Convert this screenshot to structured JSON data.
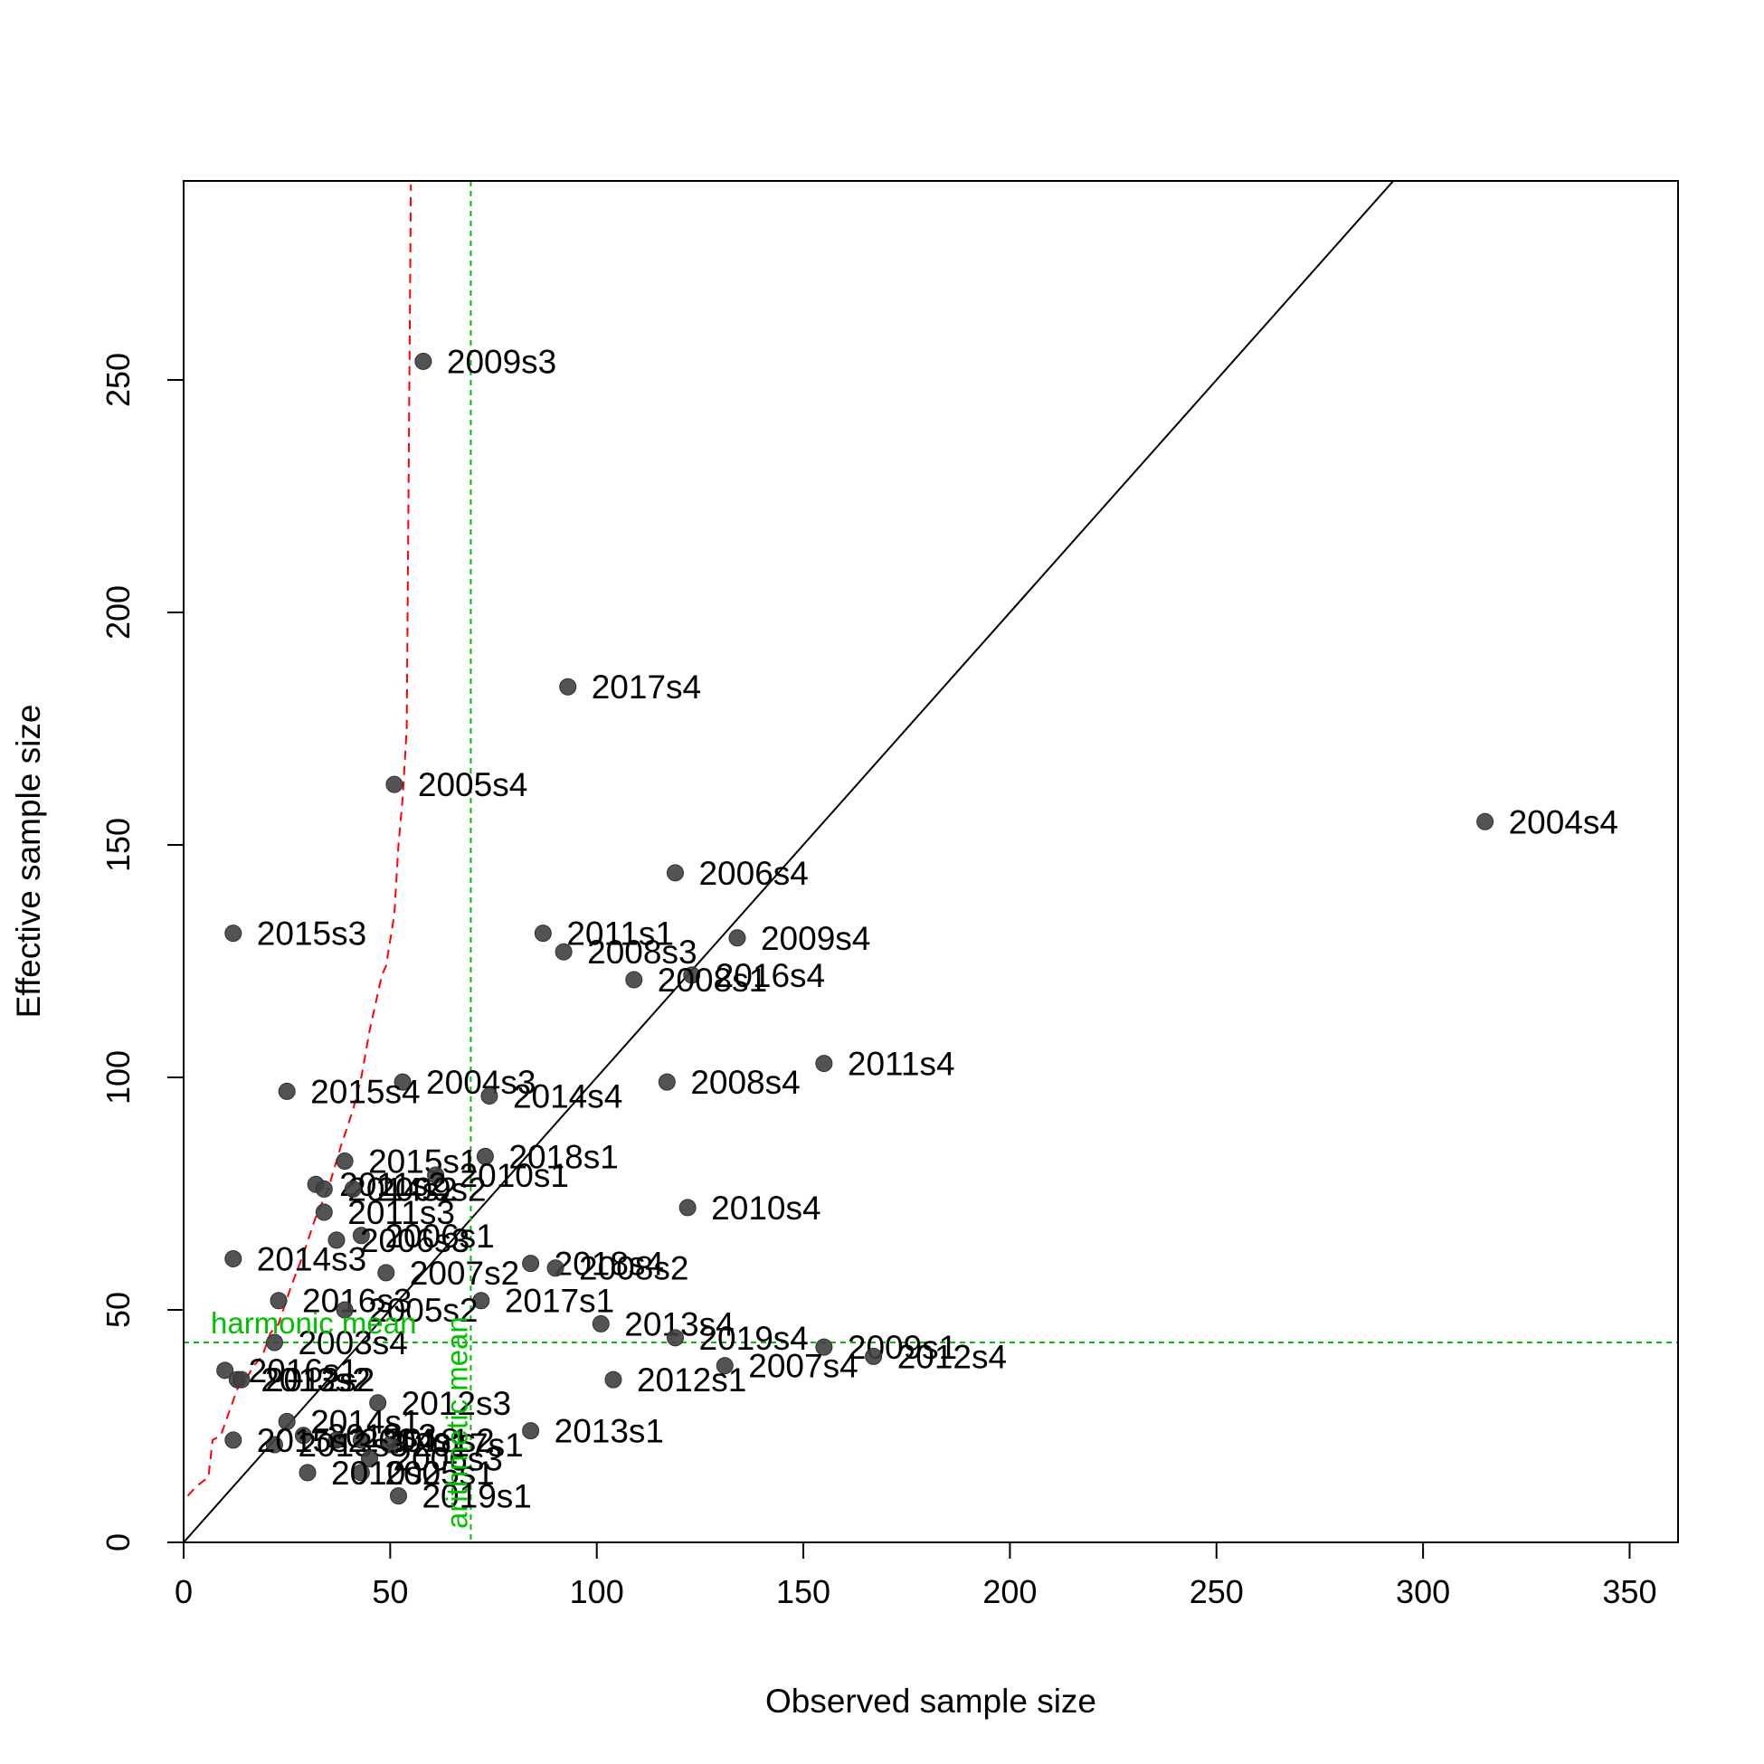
{
  "chart_data": {
    "type": "scatter",
    "title": "",
    "xlabel": "Observed sample size",
    "ylabel": "Effective sample size",
    "xlim": [
      0,
      362
    ],
    "ylim": [
      0,
      293
    ],
    "xticks": [
      0,
      50,
      100,
      150,
      200,
      250,
      300,
      350
    ],
    "yticks": [
      0,
      50,
      100,
      150,
      200,
      250
    ],
    "grid": false,
    "identity_line": true,
    "point_color": "#404040",
    "points": [
      {
        "label": "2009s3",
        "x": 58,
        "y": 254
      },
      {
        "label": "2017s4",
        "x": 93,
        "y": 184
      },
      {
        "label": "2005s4",
        "x": 51,
        "y": 163
      },
      {
        "label": "2004s4",
        "x": 315,
        "y": 155
      },
      {
        "label": "2006s4",
        "x": 119,
        "y": 144
      },
      {
        "label": "2015s3",
        "x": 12,
        "y": 131
      },
      {
        "label": "2011s1",
        "x": 87,
        "y": 131
      },
      {
        "label": "2009s4",
        "x": 134,
        "y": 130
      },
      {
        "label": "2008s3",
        "x": 92,
        "y": 127
      },
      {
        "label": "2016s4",
        "x": 123,
        "y": 122
      },
      {
        "label": "2008s1",
        "x": 109,
        "y": 121
      },
      {
        "label": "2011s4",
        "x": 155,
        "y": 103
      },
      {
        "label": "2004s3",
        "x": 53,
        "y": 99
      },
      {
        "label": "2008s4",
        "x": 117,
        "y": 99
      },
      {
        "label": "2015s4",
        "x": 25,
        "y": 97
      },
      {
        "label": "2014s4",
        "x": 74,
        "y": 96
      },
      {
        "label": "2018s1",
        "x": 73,
        "y": 83
      },
      {
        "label": "2015s1",
        "x": 39,
        "y": 82
      },
      {
        "label": "2010s1",
        "x": 61,
        "y": 79
      },
      {
        "label": "2011s2",
        "x": 32,
        "y": 77
      },
      {
        "label": "2014s2",
        "x": 34,
        "y": 76
      },
      {
        "label": "2009s2",
        "x": 41,
        "y": 76
      },
      {
        "label": "2010s4",
        "x": 122,
        "y": 72
      },
      {
        "label": "2011s3",
        "x": 34,
        "y": 71
      },
      {
        "label": "2006s1",
        "x": 43,
        "y": 66
      },
      {
        "label": "2006s3",
        "x": 37,
        "y": 65
      },
      {
        "label": "2014s3",
        "x": 12,
        "y": 61
      },
      {
        "label": "2018s4",
        "x": 84,
        "y": 60
      },
      {
        "label": "2008s2",
        "x": 90,
        "y": 59
      },
      {
        "label": "2007s2",
        "x": 49,
        "y": 58
      },
      {
        "label": "2016s3",
        "x": 23,
        "y": 52
      },
      {
        "label": "2017s1",
        "x": 72,
        "y": 52
      },
      {
        "label": "2005s2",
        "x": 39,
        "y": 50
      },
      {
        "label": "2013s4",
        "x": 101,
        "y": 47
      },
      {
        "label": "2019s4",
        "x": 119,
        "y": 44
      },
      {
        "label": "2003s4",
        "x": 22,
        "y": 43
      },
      {
        "label": "2009s1",
        "x": 155,
        "y": 42
      },
      {
        "label": "2012s4",
        "x": 167,
        "y": 40
      },
      {
        "label": "2007s4",
        "x": 131,
        "y": 38
      },
      {
        "label": "2016s1",
        "x": 10,
        "y": 37
      },
      {
        "label": "2013s2",
        "x": 13,
        "y": 35
      },
      {
        "label": "2012s2",
        "x": 14,
        "y": 35
      },
      {
        "label": "2012s1",
        "x": 104,
        "y": 35
      },
      {
        "label": "2012s3",
        "x": 47,
        "y": 30
      },
      {
        "label": "2014s1",
        "x": 25,
        "y": 26
      },
      {
        "label": "2013s1",
        "x": 84,
        "y": 24
      },
      {
        "label": "2019s3",
        "x": 29,
        "y": 23
      },
      {
        "label": "2004s1",
        "x": 37,
        "y": 22
      },
      {
        "label": "2018s2",
        "x": 43,
        "y": 22
      },
      {
        "label": "2017s1",
        "x": 50,
        "y": 21
      },
      {
        "label": "2013s3",
        "x": 22,
        "y": 21
      },
      {
        "label": "2015s2",
        "x": 12,
        "y": 22
      },
      {
        "label": "2006s3",
        "x": 45,
        "y": 18
      },
      {
        "label": "2005s1",
        "x": 43,
        "y": 15
      },
      {
        "label": "2010s2",
        "x": 30,
        "y": 15
      },
      {
        "label": "2019s1",
        "x": 52,
        "y": 10
      }
    ],
    "reference_lines": {
      "harmonic_mean": {
        "label": "harmonic mean",
        "value": 43,
        "axis": "y",
        "color": "#00c000"
      },
      "arithmetic_mean": {
        "label": "arithmetic mean",
        "value": 69.5,
        "axis": "x",
        "color": "#00c000"
      }
    },
    "red_dashed_line": {
      "color": "#ff0000",
      "x": [
        1,
        3,
        6,
        7,
        9,
        11,
        13,
        15,
        17,
        19,
        21,
        23,
        26,
        29,
        32,
        35,
        38,
        41,
        43,
        45,
        47,
        48,
        49,
        51,
        52,
        53,
        54,
        55
      ],
      "y": [
        10,
        12,
        14,
        22,
        23,
        28,
        33,
        35,
        38,
        40,
        45,
        47,
        55,
        62,
        70,
        76,
        85,
        93,
        100,
        110,
        118,
        122,
        124,
        135,
        150,
        160,
        175,
        292
      ]
    }
  }
}
